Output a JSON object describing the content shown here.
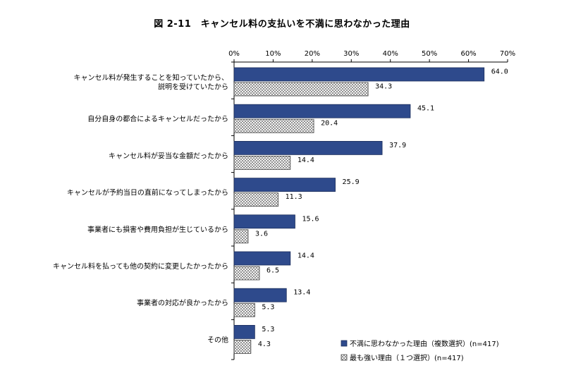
{
  "chart_data": {
    "type": "bar",
    "orientation": "horizontal",
    "title": "図 2-11　キャンセル料の支払いを不満に思わなかった理由",
    "xlim": [
      0,
      70
    ],
    "ticks": [
      "0%",
      "10%",
      "20%",
      "30%",
      "40%",
      "50%",
      "60%",
      "70%"
    ],
    "tick_values": [
      0,
      10,
      20,
      30,
      40,
      50,
      60,
      70
    ],
    "grid": false,
    "legend_position": "bottom-right",
    "categories": [
      [
        "キャンセル料が発生することを知っていたから、",
        "説明を受けていたから"
      ],
      [
        "自分自身の都合によるキャンセルだったから"
      ],
      [
        "キャンセル料が妥当な金額だったから"
      ],
      [
        "キャンセルが予約当日の直前になってしまったから"
      ],
      [
        "事業者にも損害や費用負担が生じているから"
      ],
      [
        "キャンセル料を払っても他の契約に変更したかったから"
      ],
      [
        "事業者の対応が良かったから"
      ],
      [
        "その他"
      ]
    ],
    "series": [
      {
        "name": "不満に思わなかった理由（複数選択）(n=417)",
        "color": "#2e4a8c",
        "pattern": "solid",
        "values": [
          64.0,
          45.1,
          37.9,
          25.9,
          15.6,
          14.4,
          13.4,
          5.3
        ],
        "labels": [
          "64.0",
          "45.1",
          "37.9",
          "25.9",
          "15.6",
          "14.4",
          "13.4",
          "5.3"
        ]
      },
      {
        "name": "最も強い理由（１つ選択）(n=417)",
        "color": "#ffffff",
        "pattern": "crosshatch",
        "values": [
          34.3,
          20.4,
          14.4,
          11.3,
          3.6,
          6.5,
          5.3,
          4.3
        ],
        "labels": [
          "34.3",
          "20.4",
          "14.4",
          "11.3",
          "3.6",
          "6.5",
          "5.3",
          "4.3"
        ]
      }
    ]
  }
}
